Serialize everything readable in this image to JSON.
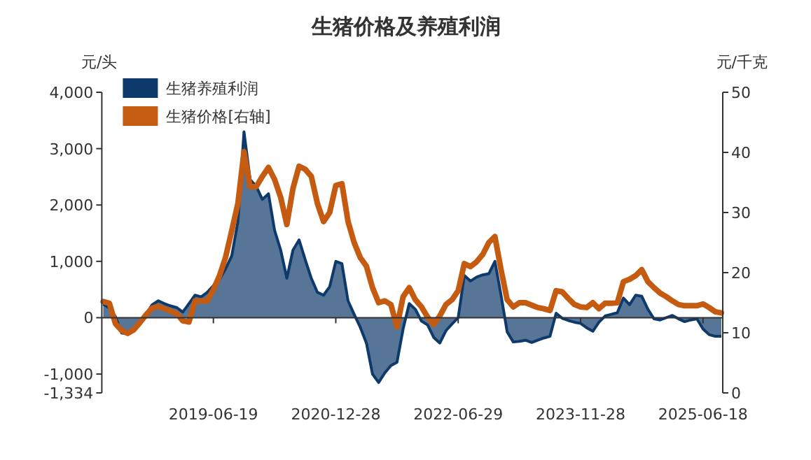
{
  "chart_data": {
    "type": "line",
    "title": "生猪价格及养殖利润",
    "ylabel": "元/头",
    "y2label": "元/千克",
    "categories": [
      null,
      null,
      null,
      null,
      null,
      null,
      null,
      null,
      null,
      null,
      null,
      null,
      null,
      null,
      null,
      null,
      null,
      null,
      "2019-06-19",
      null,
      null,
      null,
      null,
      null,
      null,
      null,
      null,
      null,
      null,
      null,
      null,
      null,
      null,
      null,
      null,
      null,
      null,
      null,
      "2020-12-28",
      null,
      null,
      null,
      null,
      null,
      null,
      null,
      null,
      null,
      null,
      null,
      null,
      null,
      null,
      null,
      null,
      null,
      null,
      null,
      "2022-06-29",
      null,
      null,
      null,
      null,
      null,
      null,
      null,
      null,
      null,
      null,
      null,
      null,
      null,
      null,
      null,
      null,
      null,
      null,
      null,
      "2023-11-28",
      null,
      null,
      null,
      null,
      null,
      null,
      null,
      null,
      null,
      null,
      null,
      null,
      null,
      null,
      null,
      null,
      null,
      null,
      null,
      "2025-06-18",
      null,
      null,
      null
    ],
    "ylim": [
      -1334,
      4000
    ],
    "yticks": [
      {
        "value": -1334,
        "label": "-1,334"
      },
      {
        "value": -1000,
        "label": "-1,000"
      },
      0,
      {
        "value": 1000,
        "label": "1,000"
      },
      {
        "value": 2000,
        "label": "2,000"
      },
      {
        "value": 3000,
        "label": "3,000"
      },
      {
        "value": 4000,
        "label": "4,000"
      }
    ],
    "y2lim": [
      0,
      50
    ],
    "y2ticks": [
      0,
      10,
      20,
      30,
      40,
      50
    ],
    "legend": "top left",
    "series": [
      {
        "name": "生猪养殖利润",
        "type": "area",
        "color": "#0e3a6b",
        "values": [
          240,
          170,
          20,
          -270,
          -290,
          -220,
          -100,
          60,
          230,
          300,
          250,
          210,
          180,
          100,
          250,
          400,
          370,
          450,
          570,
          680,
          870,
          1100,
          1700,
          3300,
          2450,
          2330,
          2100,
          2200,
          1550,
          1200,
          700,
          1200,
          1380,
          1030,
          700,
          450,
          400,
          550,
          1000,
          960,
          300,
          60,
          -170,
          -450,
          -1000,
          -1150,
          -980,
          -850,
          -790,
          -200,
          250,
          150,
          -60,
          -130,
          -350,
          -450,
          -230,
          -110,
          0,
          750,
          650,
          720,
          760,
          780,
          1000,
          400,
          -250,
          -430,
          -420,
          -400,
          -440,
          -400,
          -360,
          -330,
          80,
          -10,
          -50,
          -80,
          -100,
          -180,
          -240,
          -80,
          30,
          60,
          90,
          350,
          230,
          400,
          380,
          150,
          -20,
          -40,
          0,
          40,
          -20,
          -70,
          -40,
          -20,
          -200,
          -300,
          -330,
          -330
        ]
      },
      {
        "name": "生猪价格[右轴]",
        "axis": "y2",
        "color": "#c55a11",
        "values": [
          15.2,
          14.9,
          11.5,
          10.4,
          9.9,
          10.5,
          11.7,
          13.0,
          14.1,
          14.4,
          14.0,
          13.6,
          13.2,
          12.0,
          11.8,
          15.3,
          15.3,
          15.3,
          17.2,
          19.5,
          22.6,
          27.0,
          31.5,
          40.1,
          34.3,
          34.3,
          36.0,
          37.5,
          35.5,
          32.5,
          28.0,
          34.0,
          37.7,
          37.2,
          36.0,
          31.5,
          28.5,
          30.0,
          34.5,
          34.8,
          28.5,
          25.0,
          22.5,
          21.1,
          17.5,
          15.0,
          15.3,
          14.7,
          11.0,
          16.0,
          17.5,
          15.5,
          14.3,
          12.6,
          11.4,
          12.8,
          14.7,
          15.5,
          17.0,
          21.5,
          21.0,
          21.8,
          23.0,
          25.0,
          26.0,
          20.5,
          15.5,
          14.3,
          15.0,
          15.0,
          14.6,
          14.2,
          14.0,
          13.7,
          17.0,
          16.8,
          15.7,
          14.7,
          14.3,
          14.2,
          15.0,
          14.0,
          14.9,
          14.9,
          15.0,
          18.5,
          18.9,
          19.5,
          20.5,
          18.5,
          17.5,
          16.6,
          16.0,
          15.3,
          14.7,
          14.5,
          14.5,
          14.5,
          14.8,
          14.2,
          13.5,
          13.3
        ]
      }
    ]
  }
}
